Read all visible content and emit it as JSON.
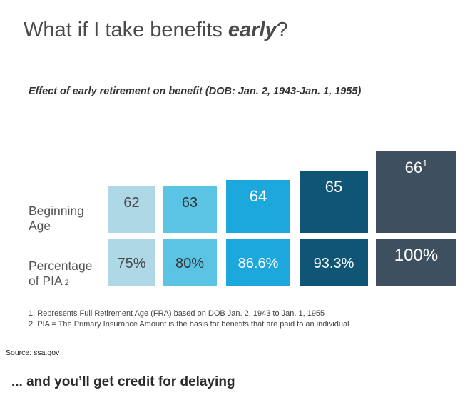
{
  "title": {
    "prefix": "What if I take benefits ",
    "emphasis": "early",
    "suffix": "?"
  },
  "row_labels": {
    "age_line1": "Beginning",
    "age_line2": "Age",
    "pct_line1": "Percentage",
    "pct_line2": "of PIA",
    "pct_sup": "2"
  },
  "chart_data": {
    "type": "table",
    "title": "Effect of early retirement on benefit (DOB: Jan. 2, 1943-Jan. 1, 1955)",
    "rows": [
      "Beginning Age",
      "Percentage of PIA2"
    ],
    "columns": [
      {
        "age": "62",
        "age_note": "",
        "percentage": "75%",
        "value": 75,
        "color": "#aed8e6"
      },
      {
        "age": "63",
        "age_note": "",
        "percentage": "80%",
        "value": 80,
        "color": "#5bc3e4"
      },
      {
        "age": "64",
        "age_note": "",
        "percentage": "86.6%",
        "value": 86.6,
        "color": "#1ca7dd"
      },
      {
        "age": "65",
        "age_note": "",
        "percentage": "93.3%",
        "value": 93.3,
        "color": "#0f5576"
      },
      {
        "age": "66",
        "age_note": "1",
        "percentage": "100%",
        "value": 100,
        "color": "#3e4f5f"
      }
    ]
  },
  "footnotes": [
    "1.  Represents Full Retirement Age (FRA) based on DOB Jan. 2, 1943 to Jan. 1, 1955",
    "2.  PIA = The Primary Insurance Amount is the basis for benefits that are paid to an individual"
  ],
  "source": "Source: ssa.gov",
  "tagline": "... and you’ll get credit for delaying"
}
